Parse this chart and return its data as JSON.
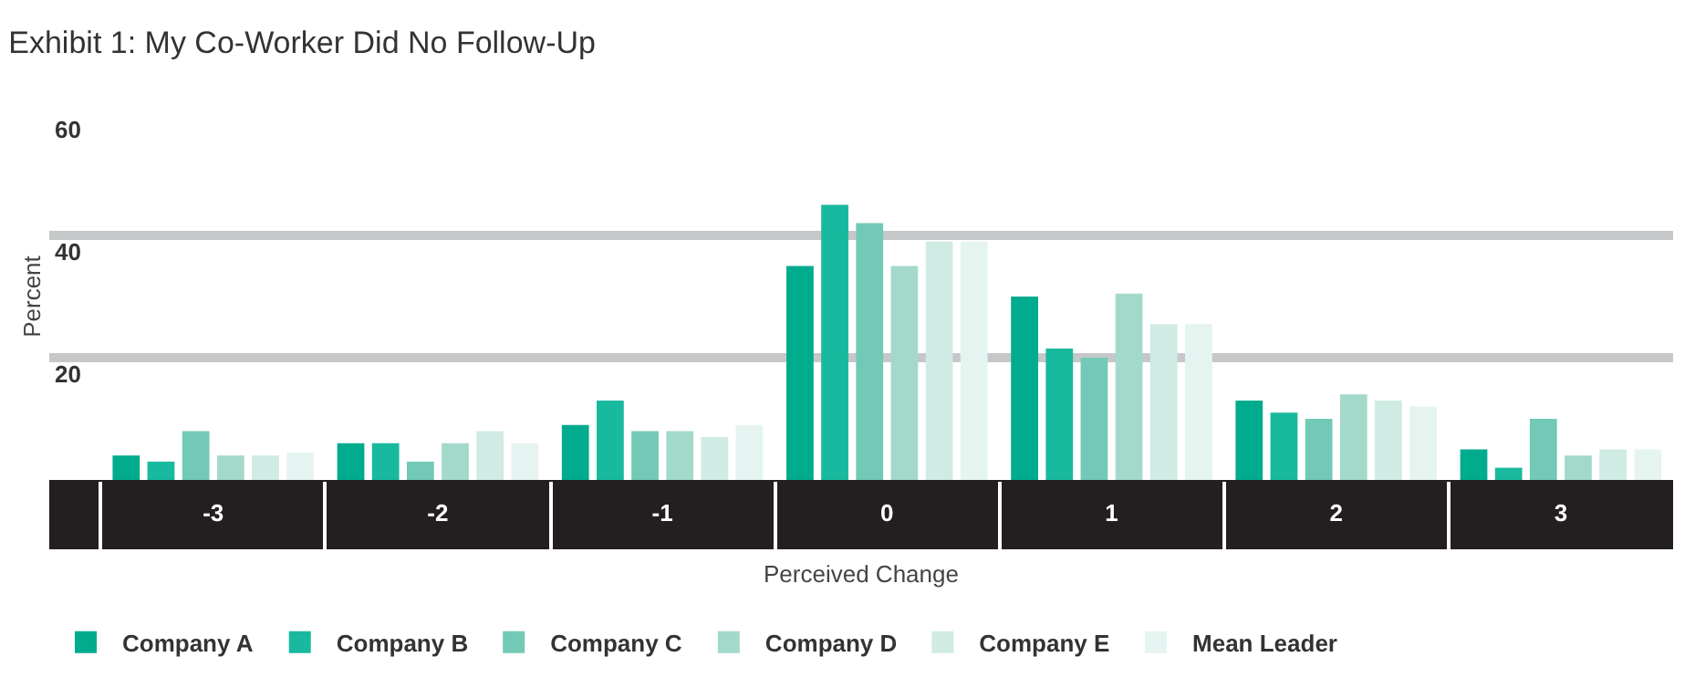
{
  "chart_data": {
    "type": "bar",
    "title": "Exhibit 1: My Co-Worker Did No Follow-Up",
    "xlabel": "Perceived Change",
    "ylabel": "Percent",
    "categories": [
      "-3",
      "-2",
      "-1",
      "0",
      "1",
      "2",
      "3"
    ],
    "series": [
      {
        "name": "Company A",
        "color": "#00ab8e",
        "values": [
          4,
          6,
          9,
          35,
          30,
          13,
          5
        ]
      },
      {
        "name": "Company B",
        "color": "#19b99f",
        "values": [
          3,
          6,
          13,
          45,
          21.5,
          11,
          2
        ]
      },
      {
        "name": "Company C",
        "color": "#72c9b6",
        "values": [
          8,
          3,
          8,
          42,
          20,
          10,
          10
        ]
      },
      {
        "name": "Company D",
        "color": "#a3d9cb",
        "values": [
          4,
          6,
          8,
          35,
          30.5,
          14,
          4
        ]
      },
      {
        "name": "Company E",
        "color": "#cfebe3",
        "values": [
          4,
          8,
          7,
          39,
          25.5,
          13,
          5
        ]
      },
      {
        "name": "Mean Leader",
        "color": "#e5f4f0",
        "values": [
          4.5,
          6,
          9,
          39,
          25.5,
          12,
          5
        ]
      }
    ],
    "ylim": [
      0,
      60
    ],
    "yticks": [
      20,
      40,
      60
    ],
    "grid": "y",
    "legend": "bottom"
  }
}
